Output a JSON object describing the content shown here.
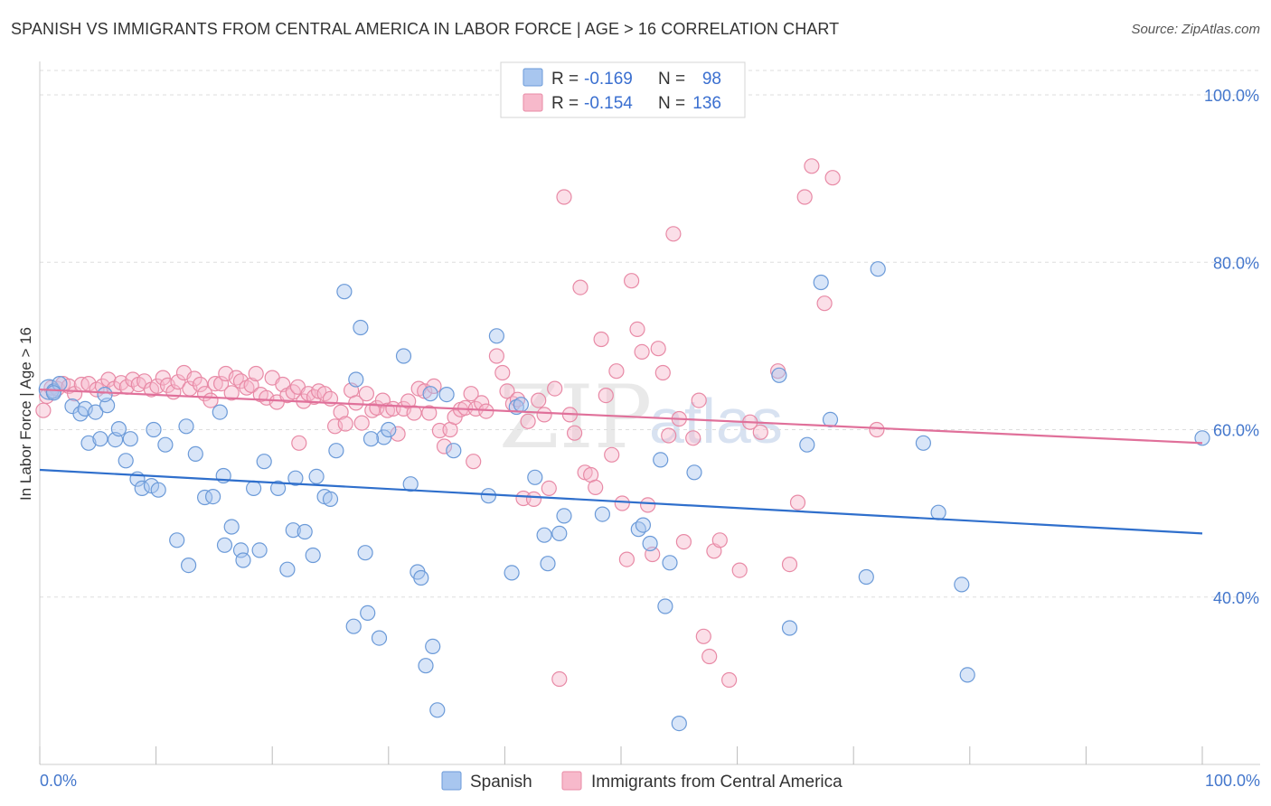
{
  "chart_data": {
    "type": "scatter",
    "title": "SPANISH VS IMMIGRANTS FROM CENTRAL AMERICA IN LABOR FORCE | AGE > 16 CORRELATION CHART",
    "source": "Source: ZipAtlas.com",
    "xlabel": "",
    "ylabel": "In Labor Force | Age > 16",
    "xlim": [
      0,
      100
    ],
    "ylim": [
      20,
      104
    ],
    "x_tick_labels": {
      "left": "0.0%",
      "right": "100.0%"
    },
    "y_ticks": [
      {
        "value": 100,
        "label": "100.0%"
      },
      {
        "value": 80,
        "label": "80.0%"
      },
      {
        "value": 60,
        "label": "60.0%"
      },
      {
        "value": 40,
        "label": "40.0%"
      }
    ],
    "watermark": {
      "zip": "ZIP",
      "atlas": "atlas"
    },
    "legend": {
      "r_label": "R =",
      "n_label": "N =",
      "rows": [
        {
          "r": "-0.169",
          "n": "98"
        },
        {
          "r": "-0.154",
          "n": "136"
        }
      ]
    },
    "colors": {
      "spanish_fill": "#a8c6ef",
      "spanish_stroke": "#6b9ad8",
      "spanish_line": "#2f6fcc",
      "central_fill": "#f7b9cb",
      "central_stroke": "#e88aa6",
      "central_line": "#e0709a"
    },
    "series": [
      {
        "name": "Spanish",
        "trend": {
          "x": [
            0,
            100
          ],
          "y": [
            55.2,
            47.6
          ]
        },
        "points": [
          [
            0.8,
            64.8
          ],
          [
            1.2,
            64.6
          ],
          [
            1.7,
            65.5
          ],
          [
            1.2,
            64.4
          ],
          [
            2.8,
            62.8
          ],
          [
            3.5,
            61.9
          ],
          [
            3.9,
            62.5
          ],
          [
            4.8,
            62.1
          ],
          [
            5.8,
            62.9
          ],
          [
            4.2,
            58.4
          ],
          [
            5.2,
            58.9
          ],
          [
            6.5,
            58.8
          ],
          [
            7.8,
            58.9
          ],
          [
            6.8,
            60.1
          ],
          [
            7.4,
            56.3
          ],
          [
            8.4,
            54.1
          ],
          [
            8.8,
            53.0
          ],
          [
            9.6,
            53.3
          ],
          [
            10.2,
            52.8
          ],
          [
            9.8,
            60.0
          ],
          [
            10.8,
            58.2
          ],
          [
            12.6,
            60.4
          ],
          [
            13.4,
            57.1
          ],
          [
            14.2,
            51.9
          ],
          [
            14.9,
            52.0
          ],
          [
            15.5,
            62.1
          ],
          [
            15.8,
            54.5
          ],
          [
            11.8,
            46.8
          ],
          [
            12.8,
            43.8
          ],
          [
            15.9,
            46.2
          ],
          [
            16.5,
            48.4
          ],
          [
            17.3,
            45.6
          ],
          [
            17.5,
            44.4
          ],
          [
            18.9,
            45.6
          ],
          [
            18.4,
            53.0
          ],
          [
            19.3,
            56.2
          ],
          [
            20.5,
            53.0
          ],
          [
            21.3,
            43.3
          ],
          [
            21.8,
            48.0
          ],
          [
            22.0,
            54.2
          ],
          [
            22.8,
            47.8
          ],
          [
            23.5,
            45.0
          ],
          [
            23.8,
            54.4
          ],
          [
            24.5,
            52.0
          ],
          [
            25.0,
            51.7
          ],
          [
            25.5,
            57.5
          ],
          [
            26.2,
            76.5
          ],
          [
            27.2,
            66.0
          ],
          [
            27.6,
            72.2
          ],
          [
            28.0,
            45.3
          ],
          [
            27.0,
            36.5
          ],
          [
            28.2,
            38.1
          ],
          [
            29.2,
            35.1
          ],
          [
            29.6,
            59.1
          ],
          [
            30.0,
            60.0
          ],
          [
            31.3,
            68.8
          ],
          [
            31.9,
            53.5
          ],
          [
            32.5,
            43.0
          ],
          [
            32.8,
            42.3
          ],
          [
            33.2,
            31.8
          ],
          [
            33.8,
            34.1
          ],
          [
            35.0,
            64.2
          ],
          [
            34.2,
            26.5
          ],
          [
            35.6,
            57.5
          ],
          [
            39.3,
            71.2
          ],
          [
            38.6,
            52.1
          ],
          [
            40.6,
            42.9
          ],
          [
            41.0,
            62.7
          ],
          [
            42.6,
            54.3
          ],
          [
            43.4,
            47.4
          ],
          [
            43.7,
            44.0
          ],
          [
            44.7,
            47.6
          ],
          [
            45.1,
            49.7
          ],
          [
            48.4,
            49.9
          ],
          [
            51.5,
            48.1
          ],
          [
            51.9,
            48.6
          ],
          [
            52.5,
            46.4
          ],
          [
            53.4,
            56.4
          ],
          [
            53.8,
            38.9
          ],
          [
            54.2,
            44.1
          ],
          [
            55.0,
            24.9
          ],
          [
            56.3,
            54.9
          ],
          [
            63.6,
            66.5
          ],
          [
            64.5,
            36.3
          ],
          [
            66.0,
            58.2
          ],
          [
            67.2,
            77.6
          ],
          [
            68.0,
            61.2
          ],
          [
            71.1,
            42.4
          ],
          [
            72.1,
            79.2
          ],
          [
            76.0,
            58.4
          ],
          [
            77.3,
            50.1
          ],
          [
            79.3,
            41.5
          ],
          [
            79.8,
            30.7
          ],
          [
            100.0,
            59.0
          ],
          [
            28.5,
            58.9
          ],
          [
            33.6,
            64.3
          ],
          [
            41.4,
            63.0
          ],
          [
            5.6,
            64.2
          ]
        ]
      },
      {
        "name": "Immigrants from Central America",
        "trend": {
          "x": [
            0,
            100
          ],
          "y": [
            64.8,
            58.4
          ]
        },
        "points": [
          [
            0.3,
            62.3
          ],
          [
            0.6,
            64.0
          ],
          [
            1.0,
            65.0
          ],
          [
            1.5,
            64.9
          ],
          [
            2.0,
            65.5
          ],
          [
            2.5,
            65.2
          ],
          [
            3.0,
            64.3
          ],
          [
            3.6,
            65.4
          ],
          [
            4.2,
            65.5
          ],
          [
            4.9,
            64.8
          ],
          [
            5.4,
            65.2
          ],
          [
            5.9,
            66.0
          ],
          [
            6.4,
            64.9
          ],
          [
            7.0,
            65.6
          ],
          [
            7.5,
            65.1
          ],
          [
            8.0,
            66.0
          ],
          [
            8.5,
            65.4
          ],
          [
            9.0,
            65.8
          ],
          [
            9.6,
            64.8
          ],
          [
            10.1,
            65.2
          ],
          [
            10.6,
            66.2
          ],
          [
            11.0,
            65.3
          ],
          [
            11.5,
            64.5
          ],
          [
            11.9,
            65.7
          ],
          [
            12.4,
            66.8
          ],
          [
            12.9,
            64.9
          ],
          [
            13.3,
            66.1
          ],
          [
            13.8,
            65.4
          ],
          [
            14.2,
            64.3
          ],
          [
            14.7,
            63.5
          ],
          [
            15.1,
            65.5
          ],
          [
            15.6,
            65.5
          ],
          [
            16.0,
            66.7
          ],
          [
            16.5,
            64.4
          ],
          [
            16.9,
            66.2
          ],
          [
            17.3,
            65.8
          ],
          [
            17.8,
            65.0
          ],
          [
            18.2,
            65.3
          ],
          [
            18.6,
            66.7
          ],
          [
            19.0,
            64.2
          ],
          [
            19.5,
            63.8
          ],
          [
            20.0,
            66.2
          ],
          [
            20.4,
            63.3
          ],
          [
            20.9,
            65.4
          ],
          [
            21.3,
            64.1
          ],
          [
            21.8,
            64.5
          ],
          [
            22.2,
            65.1
          ],
          [
            22.7,
            63.4
          ],
          [
            23.1,
            64.3
          ],
          [
            23.6,
            63.9
          ],
          [
            24.0,
            64.6
          ],
          [
            24.5,
            64.3
          ],
          [
            25.0,
            63.7
          ],
          [
            25.4,
            60.4
          ],
          [
            25.9,
            62.1
          ],
          [
            26.3,
            60.7
          ],
          [
            26.8,
            64.7
          ],
          [
            27.2,
            63.2
          ],
          [
            27.7,
            60.8
          ],
          [
            28.1,
            64.3
          ],
          [
            28.6,
            62.3
          ],
          [
            29.0,
            62.6
          ],
          [
            29.5,
            63.5
          ],
          [
            29.9,
            62.3
          ],
          [
            30.4,
            62.5
          ],
          [
            30.8,
            59.5
          ],
          [
            31.3,
            62.5
          ],
          [
            31.7,
            63.4
          ],
          [
            32.2,
            62.0
          ],
          [
            32.6,
            64.9
          ],
          [
            33.1,
            64.6
          ],
          [
            33.5,
            62.0
          ],
          [
            33.9,
            65.2
          ],
          [
            34.4,
            59.9
          ],
          [
            34.8,
            58.0
          ],
          [
            35.3,
            60.0
          ],
          [
            35.7,
            61.5
          ],
          [
            36.2,
            62.4
          ],
          [
            36.6,
            62.6
          ],
          [
            37.1,
            64.3
          ],
          [
            37.5,
            62.5
          ],
          [
            38.0,
            63.2
          ],
          [
            38.4,
            62.2
          ],
          [
            39.3,
            68.8
          ],
          [
            39.8,
            66.8
          ],
          [
            40.2,
            64.6
          ],
          [
            40.7,
            63.1
          ],
          [
            41.1,
            63.6
          ],
          [
            41.6,
            51.8
          ],
          [
            42.0,
            61.0
          ],
          [
            42.5,
            51.7
          ],
          [
            42.9,
            63.5
          ],
          [
            43.4,
            61.8
          ],
          [
            43.8,
            53.0
          ],
          [
            44.3,
            64.9
          ],
          [
            44.7,
            30.2
          ],
          [
            45.1,
            87.8
          ],
          [
            45.6,
            61.8
          ],
          [
            46.0,
            59.6
          ],
          [
            46.5,
            77.0
          ],
          [
            46.9,
            54.9
          ],
          [
            47.4,
            54.6
          ],
          [
            47.8,
            53.1
          ],
          [
            48.3,
            70.8
          ],
          [
            48.7,
            64.1
          ],
          [
            49.2,
            57.0
          ],
          [
            49.6,
            67.0
          ],
          [
            50.1,
            51.2
          ],
          [
            50.5,
            44.5
          ],
          [
            50.9,
            77.8
          ],
          [
            51.4,
            72.0
          ],
          [
            51.8,
            69.3
          ],
          [
            52.3,
            51.0
          ],
          [
            52.7,
            45.1
          ],
          [
            53.2,
            69.7
          ],
          [
            53.6,
            66.8
          ],
          [
            54.1,
            59.3
          ],
          [
            54.5,
            83.4
          ],
          [
            55.0,
            61.3
          ],
          [
            55.4,
            46.6
          ],
          [
            56.2,
            59.0
          ],
          [
            56.7,
            63.5
          ],
          [
            57.1,
            35.3
          ],
          [
            57.6,
            32.9
          ],
          [
            58.0,
            45.5
          ],
          [
            58.5,
            46.8
          ],
          [
            59.3,
            30.1
          ],
          [
            60.2,
            43.2
          ],
          [
            61.1,
            60.9
          ],
          [
            62.0,
            59.7
          ],
          [
            63.5,
            67.0
          ],
          [
            64.5,
            43.9
          ],
          [
            65.2,
            51.3
          ],
          [
            65.8,
            87.8
          ],
          [
            66.4,
            91.5
          ],
          [
            67.5,
            75.1
          ],
          [
            68.2,
            90.1
          ],
          [
            72.0,
            60.0
          ],
          [
            22.3,
            58.4
          ],
          [
            37.3,
            56.2
          ]
        ]
      }
    ]
  },
  "bottom_legend": [
    {
      "label": "Spanish"
    },
    {
      "label": "Immigrants from Central America"
    }
  ]
}
